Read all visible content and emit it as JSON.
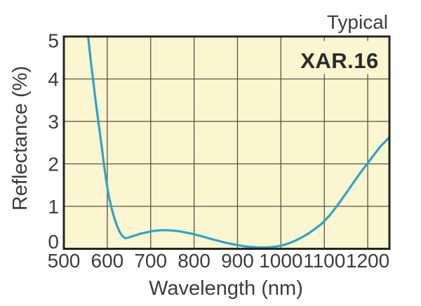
{
  "annotation": "Typical",
  "chart_data": {
    "type": "line",
    "title": "XAR.16",
    "annotation": "Typical",
    "xlabel": "Wavelength (nm)",
    "ylabel": "Reflectance (%)",
    "xlim": [
      500,
      1250
    ],
    "ylim": [
      0,
      5
    ],
    "x_ticks": [
      500,
      600,
      700,
      800,
      900,
      1000,
      1100,
      1200
    ],
    "y_ticks": [
      0,
      1,
      2,
      3,
      4,
      5
    ],
    "grid": true,
    "legend_position": "none",
    "series": [
      {
        "name": "XAR.16 typical reflectance",
        "points": [
          [
            550,
            5.8
          ],
          [
            556,
            5.0
          ],
          [
            562,
            4.42
          ],
          [
            568,
            3.92
          ],
          [
            574,
            3.42
          ],
          [
            580,
            2.95
          ],
          [
            586,
            2.5
          ],
          [
            592,
            2.02
          ],
          [
            598,
            1.58
          ],
          [
            604,
            1.22
          ],
          [
            610,
            0.95
          ],
          [
            616,
            0.73
          ],
          [
            622,
            0.55
          ],
          [
            628,
            0.41
          ],
          [
            634,
            0.31
          ],
          [
            641,
            0.25
          ],
          [
            648,
            0.26
          ],
          [
            656,
            0.29
          ],
          [
            666,
            0.32
          ],
          [
            678,
            0.36
          ],
          [
            692,
            0.39
          ],
          [
            706,
            0.42
          ],
          [
            720,
            0.435
          ],
          [
            735,
            0.44
          ],
          [
            750,
            0.43
          ],
          [
            765,
            0.415
          ],
          [
            780,
            0.385
          ],
          [
            795,
            0.355
          ],
          [
            810,
            0.315
          ],
          [
            825,
            0.275
          ],
          [
            840,
            0.23
          ],
          [
            855,
            0.19
          ],
          [
            870,
            0.15
          ],
          [
            885,
            0.115
          ],
          [
            900,
            0.09
          ],
          [
            915,
            0.06
          ],
          [
            930,
            0.045
          ],
          [
            945,
            0.035
          ],
          [
            960,
            0.033
          ],
          [
            975,
            0.038
          ],
          [
            990,
            0.055
          ],
          [
            1005,
            0.085
          ],
          [
            1020,
            0.135
          ],
          [
            1035,
            0.2
          ],
          [
            1050,
            0.28
          ],
          [
            1065,
            0.37
          ],
          [
            1080,
            0.48
          ],
          [
            1095,
            0.6
          ],
          [
            1110,
            0.76
          ],
          [
            1125,
            0.95
          ],
          [
            1140,
            1.16
          ],
          [
            1155,
            1.38
          ],
          [
            1170,
            1.6
          ],
          [
            1185,
            1.82
          ],
          [
            1200,
            2.02
          ],
          [
            1215,
            2.22
          ],
          [
            1230,
            2.42
          ],
          [
            1240,
            2.52
          ],
          [
            1250,
            2.63
          ]
        ]
      }
    ],
    "colors": {
      "line": "#2CA5C8",
      "plot_background": "#FBF6CF",
      "grid": "#54544a",
      "border": "#26261f",
      "text": "#3C3C3C",
      "title_text": "#2A2A2A",
      "page_background": "#ffffff"
    }
  }
}
